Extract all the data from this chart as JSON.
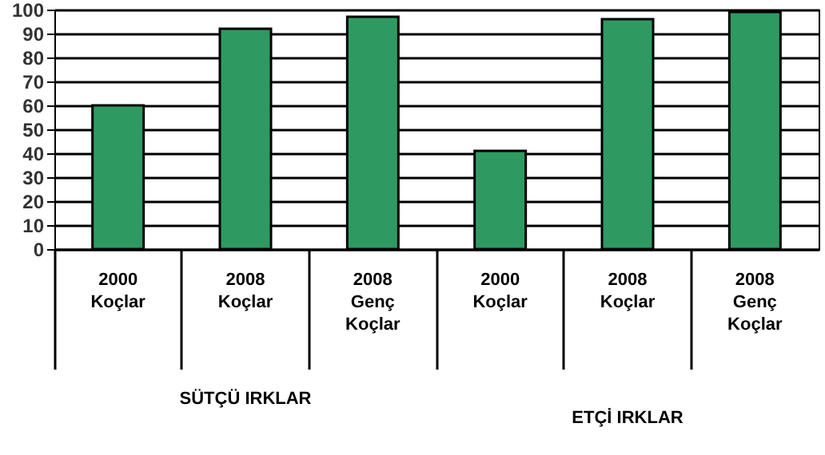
{
  "chart_data": {
    "type": "bar",
    "categories": [
      "2000 Koçlar",
      "2008 Koçlar",
      "2008 Genç Koçlar",
      "2000 Koçlar",
      "2008 Koçlar",
      "2008 Genç Koçlar"
    ],
    "values": [
      60,
      92,
      97,
      41,
      96,
      99
    ],
    "color": "#2e9a62",
    "ylim": [
      0,
      100
    ],
    "yticks": [
      0,
      10,
      20,
      30,
      40,
      50,
      60,
      70,
      80,
      90,
      100
    ],
    "grid": "y",
    "annotations": [
      "SÜTÇÜ IRKLAR",
      "ETÇİ IRKLAR"
    ]
  }
}
